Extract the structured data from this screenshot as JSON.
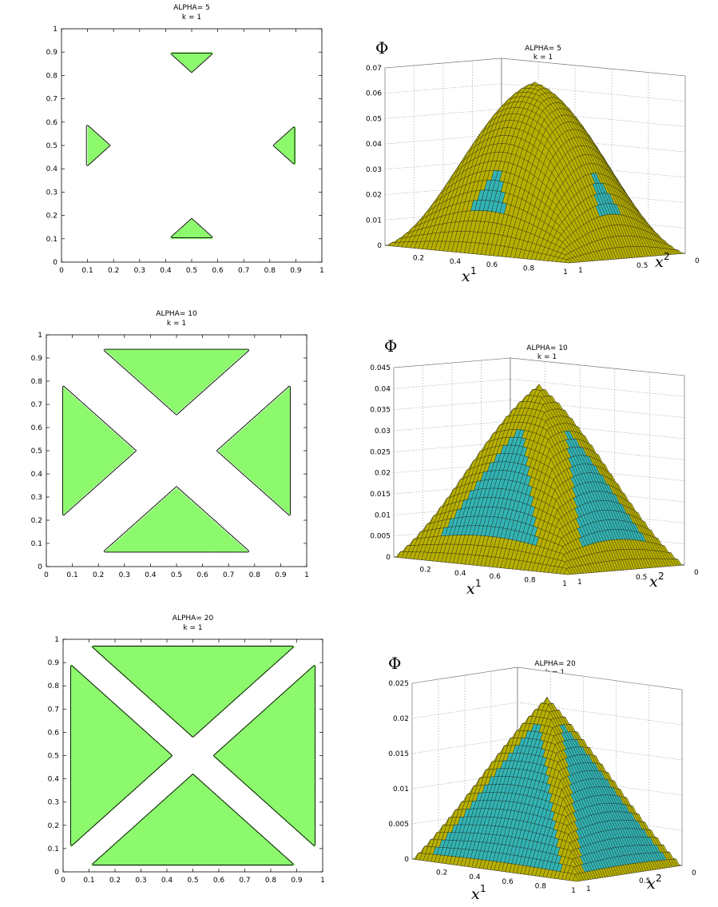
{
  "figure": {
    "panels": [
      {
        "title": "ALPHA= 5",
        "subtitle": "k = 1"
      },
      {
        "title": "ALPHA= 5",
        "subtitle": "k = 1"
      },
      {
        "title": "ALPHA= 10",
        "subtitle": "k = 1"
      },
      {
        "title": "ALPHA= 10",
        "subtitle": "k = 1"
      },
      {
        "title": "ALPHA= 20",
        "subtitle": "k = 1"
      },
      {
        "title": "ALPHA= 20",
        "subtitle": "k = 1"
      }
    ]
  },
  "colors": {
    "plan_fill": "#8dfa6e",
    "plan_background": "#ffffff",
    "surface_yellow": "#b8b000",
    "surface_cyan": "#33b4b4",
    "surface_mesh": "#1a1a1a",
    "grid": "#9a9a9a"
  },
  "chart_data": [
    {
      "type": "heatmap",
      "title": "ALPHA= 5",
      "subtitle": "k = 1",
      "xlim": [
        0,
        1
      ],
      "ylim": [
        0,
        1
      ],
      "x_ticks": [
        "0",
        "0.1",
        "0.2",
        "0.3",
        "0.4",
        "0.5",
        "0.6",
        "0.7",
        "0.8",
        "0.9",
        "1"
      ],
      "y_ticks": [
        "0",
        "0.1",
        "0.2",
        "0.3",
        "0.4",
        "0.5",
        "0.6",
        "0.7",
        "0.8",
        "0.9",
        "1"
      ],
      "cross_halfwidth": 0.22,
      "outer_band": 0.1,
      "center_radius": 0.06
    },
    {
      "type": "surface",
      "title": "ALPHA= 5",
      "subtitle": "k = 1",
      "zlabel": "Φ",
      "xlabel": "x",
      "xlabel_sup": "1",
      "ylabel": "x",
      "ylabel_sup": "2",
      "zlim": [
        0,
        0.07
      ],
      "z_ticks": [
        "0",
        "0.01",
        "0.02",
        "0.03",
        "0.04",
        "0.05",
        "0.06",
        "0.07"
      ],
      "x1_ticks": [
        "0.2",
        "0.4",
        "0.6",
        "0.8",
        "1"
      ],
      "x2_ticks": [
        "0",
        "0.5",
        "1"
      ],
      "peak": 0.066,
      "cross_halfwidth": 0.22,
      "outer_band": 0.1
    },
    {
      "type": "heatmap",
      "title": "ALPHA= 10",
      "subtitle": "k = 1",
      "xlim": [
        0,
        1
      ],
      "ylim": [
        0,
        1
      ],
      "x_ticks": [
        "0",
        "0.1",
        "0.2",
        "0.3",
        "0.4",
        "0.5",
        "0.6",
        "0.7",
        "0.8",
        "0.9",
        "1"
      ],
      "y_ticks": [
        "0",
        "0.1",
        "0.2",
        "0.3",
        "0.4",
        "0.5",
        "0.6",
        "0.7",
        "0.8",
        "0.9",
        "1"
      ],
      "cross_halfwidth": 0.11,
      "outer_band": 0.065,
      "center_radius": 0.08
    },
    {
      "type": "surface",
      "title": "ALPHA= 10",
      "subtitle": "k = 1",
      "zlabel": "Φ",
      "xlabel": "x",
      "xlabel_sup": "1",
      "ylabel": "x",
      "ylabel_sup": "2",
      "zlim": [
        0,
        0.045
      ],
      "z_ticks": [
        "0",
        "0.005",
        "0.01",
        "0.015",
        "0.02",
        "0.025",
        "0.03",
        "0.035",
        "0.04",
        "0.045"
      ],
      "x1_ticks": [
        "0.2",
        "0.4",
        "0.6",
        "0.8",
        "1"
      ],
      "x2_ticks": [
        "0",
        "0.5",
        "1"
      ],
      "peak": 0.042,
      "cross_halfwidth": 0.11,
      "outer_band": 0.065
    },
    {
      "type": "heatmap",
      "title": "ALPHA= 20",
      "subtitle": "k = 1",
      "xlim": [
        0,
        1
      ],
      "ylim": [
        0,
        1
      ],
      "x_ticks": [
        "0",
        "0.1",
        "0.2",
        "0.3",
        "0.4",
        "0.5",
        "0.6",
        "0.7",
        "0.8",
        "0.9",
        "1"
      ],
      "y_ticks": [
        "0",
        "0.1",
        "0.2",
        "0.3",
        "0.4",
        "0.5",
        "0.6",
        "0.7",
        "0.8",
        "0.9",
        "1"
      ],
      "cross_halfwidth": 0.055,
      "outer_band": 0.03,
      "center_radius": 0.05
    },
    {
      "type": "surface",
      "title": "ALPHA= 20",
      "subtitle": "k = 1",
      "zlabel": "Φ",
      "xlabel": "x",
      "xlabel_sup": "1",
      "ylabel": "x",
      "ylabel_sup": "2",
      "zlim": [
        0,
        0.025
      ],
      "z_ticks": [
        "0",
        "0.005",
        "0.01",
        "0.015",
        "0.02",
        "0.025"
      ],
      "x1_ticks": [
        "0.2",
        "0.4",
        "0.6",
        "0.8",
        "1"
      ],
      "x2_ticks": [
        "0",
        "0.5",
        "1"
      ],
      "peak": 0.0235,
      "cross_halfwidth": 0.055,
      "outer_band": 0.03
    }
  ]
}
